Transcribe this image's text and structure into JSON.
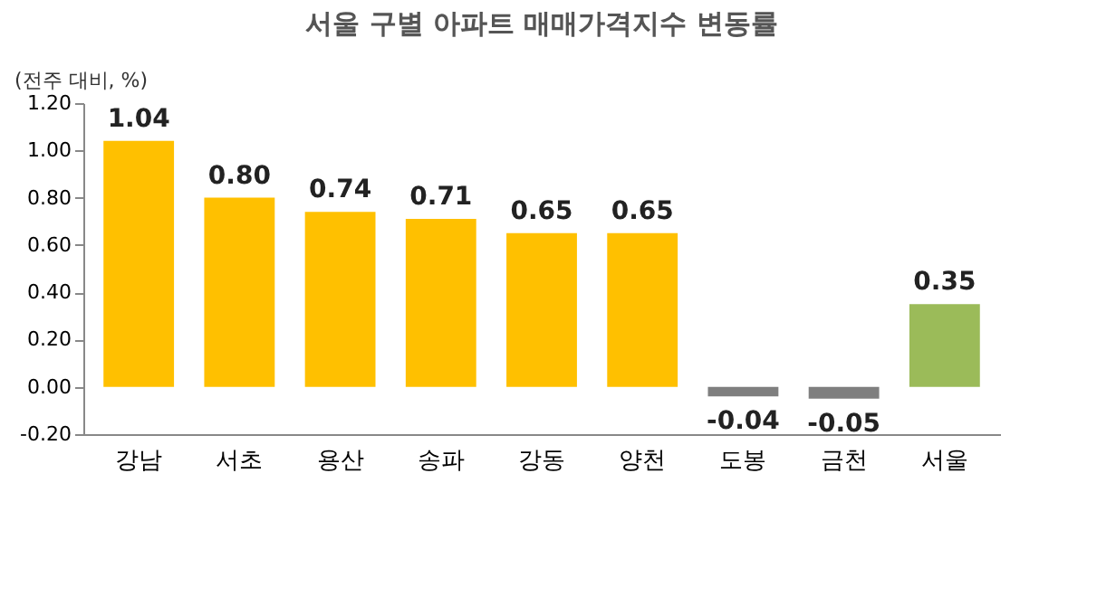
{
  "chart_data": {
    "type": "bar",
    "title": "서울 구별 아파트 매매가격지수 변동률",
    "ylabel": "(전주 대비, %)",
    "categories": [
      "강남",
      "서초",
      "용산",
      "송파",
      "강동",
      "양천",
      "도봉",
      "금천",
      "서울"
    ],
    "values": [
      1.04,
      0.8,
      0.74,
      0.71,
      0.65,
      0.65,
      -0.04,
      -0.05,
      0.35
    ],
    "colors": [
      "#ffc000",
      "#ffc000",
      "#ffc000",
      "#ffc000",
      "#ffc000",
      "#ffc000",
      "#7f7f7f",
      "#7f7f7f",
      "#9bbb59"
    ],
    "value_labels": [
      "1.04",
      "0.80",
      "0.74",
      "0.71",
      "0.65",
      "0.65",
      "-0.04",
      "-0.05",
      "0.35"
    ],
    "ylim": [
      -0.2,
      1.2
    ],
    "yticks": [
      {
        "value": -0.2,
        "label": "-0.20"
      },
      {
        "value": 0,
        "label": "0.00"
      },
      {
        "value": 0.2,
        "label": "0.20"
      },
      {
        "value": 0.4,
        "label": "0.40"
      },
      {
        "value": 0.6,
        "label": "0.60"
      },
      {
        "value": 0.8,
        "label": "0.80"
      },
      {
        "value": 1.0,
        "label": "1.00"
      },
      {
        "value": 1.2,
        "label": "1.20"
      }
    ],
    "grid": false
  }
}
